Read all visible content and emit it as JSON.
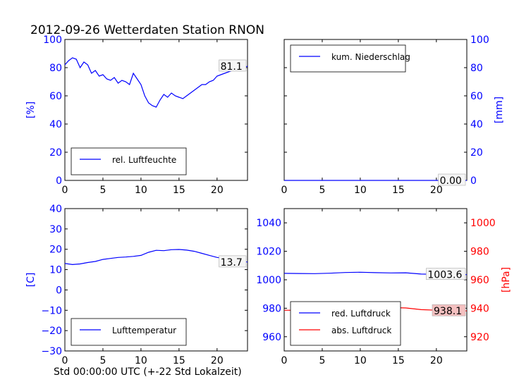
{
  "figure": {
    "title": "2012-09-26 Wetterdaten Station RNON",
    "xlabel": "Std 00:00:00 UTC (+-22 Std Lokalzeit)"
  },
  "colors": {
    "primary": "#0000ff",
    "secondary": "#ff0000",
    "value_box_red": "#f4c0c0"
  },
  "chart_data": [
    {
      "type": "line",
      "panel": "top-left",
      "ylabel": "[%]",
      "x_ticks": [
        "0",
        "5",
        "10",
        "15",
        "20"
      ],
      "y_ticks": [
        "0",
        "20",
        "40",
        "60",
        "80",
        "100"
      ],
      "xlim": [
        0,
        24
      ],
      "ylim": [
        0,
        100
      ],
      "legend": "bottom-left",
      "current_value": "81.1",
      "series": [
        {
          "name": "rel. Luftfeuchte",
          "color": "#0000ff",
          "x": [
            0,
            0.5,
            1,
            1.5,
            2,
            2.5,
            3,
            3.5,
            4,
            4.5,
            5,
            5.5,
            6,
            6.5,
            7,
            7.5,
            8,
            8.5,
            9,
            9.5,
            10,
            10.5,
            11,
            11.5,
            12,
            12.5,
            13,
            13.5,
            14,
            14.5,
            15,
            15.5,
            16,
            16.5,
            17,
            17.5,
            18,
            18.5,
            19,
            19.5,
            20,
            20.5,
            21,
            21.5,
            22,
            22.5,
            23,
            23.5,
            24
          ],
          "values": [
            82,
            85,
            87,
            86,
            80,
            84,
            82,
            76,
            78,
            74,
            75,
            72,
            71,
            73,
            69,
            71,
            70,
            68,
            76,
            72,
            68,
            60,
            55,
            53,
            52,
            57,
            61,
            59,
            62,
            60,
            59,
            58,
            60,
            62,
            64,
            66,
            68,
            68,
            70,
            71,
            74,
            75,
            76,
            77,
            78,
            78,
            79,
            80,
            81
          ]
        }
      ]
    },
    {
      "type": "line",
      "panel": "top-right",
      "ylabel": "[mm]",
      "x_ticks": [
        "0",
        "5",
        "10",
        "15",
        "20"
      ],
      "y_ticks": [
        "0",
        "20",
        "40",
        "60",
        "80",
        "100"
      ],
      "xlim": [
        0,
        24
      ],
      "ylim": [
        0,
        100
      ],
      "legend": "top-left",
      "current_value": "0.00",
      "series": [
        {
          "name": "kum. Niederschlag",
          "color": "#0000ff",
          "x": [
            0,
            24
          ],
          "values": [
            0,
            0
          ]
        }
      ]
    },
    {
      "type": "line",
      "panel": "bottom-left",
      "ylabel": "[C]",
      "x_ticks": [
        "0",
        "5",
        "10",
        "15",
        "20"
      ],
      "y_ticks": [
        "−30",
        "−20",
        "−10",
        "0",
        "10",
        "20",
        "30",
        "40"
      ],
      "xlim": [
        0,
        24
      ],
      "ylim": [
        -30,
        40
      ],
      "legend": "bottom-left",
      "current_value": "13.7",
      "series": [
        {
          "name": "Lufttemperatur",
          "color": "#0000ff",
          "x": [
            0,
            1,
            2,
            3,
            4,
            5,
            6,
            7,
            8,
            9,
            10,
            11,
            12,
            13,
            14,
            15,
            16,
            17,
            18,
            19,
            20,
            21,
            22,
            23,
            24
          ],
          "values": [
            13,
            12.5,
            12.8,
            13.5,
            14,
            15,
            15.5,
            16,
            16.2,
            16.5,
            17,
            18.5,
            19.5,
            19.3,
            19.8,
            19.9,
            19.6,
            19,
            18,
            17,
            16,
            15.5,
            15,
            14.5,
            13.7
          ]
        }
      ]
    },
    {
      "type": "line",
      "panel": "bottom-right",
      "ylabel": "[hPa]",
      "x_ticks": [
        "0",
        "5",
        "10",
        "15",
        "20"
      ],
      "y_ticks": [
        "960",
        "980",
        "1000",
        "1020",
        "1040"
      ],
      "y2_ticks": [
        "920",
        "940",
        "960",
        "980",
        "1000"
      ],
      "xlim": [
        0,
        24
      ],
      "ylim": [
        950,
        1050
      ],
      "y2lim": [
        910,
        1010
      ],
      "legend": "bottom-left",
      "current_values": [
        "1003.6",
        "938.1"
      ],
      "series": [
        {
          "name": "red. Luftdruck",
          "color": "#0000ff",
          "axis": "left",
          "x": [
            0,
            2,
            4,
            6,
            8,
            10,
            12,
            14,
            16,
            18,
            20,
            22,
            24
          ],
          "values": [
            1004.5,
            1004.4,
            1004.3,
            1004.6,
            1005.1,
            1005.3,
            1005.0,
            1004.8,
            1004.9,
            1004.0,
            1003.8,
            1003.7,
            1003.6
          ]
        },
        {
          "name": "abs. Luftdruck",
          "color": "#ff0000",
          "axis": "right",
          "x": [
            0,
            2,
            4,
            6,
            8,
            10,
            12,
            14,
            16,
            18,
            20,
            22,
            24
          ],
          "values": [
            938.6,
            938.5,
            938.8,
            939.4,
            940.2,
            940.6,
            940.7,
            940.5,
            940.2,
            939.0,
            938.6,
            938.3,
            938.1
          ]
        }
      ]
    }
  ]
}
